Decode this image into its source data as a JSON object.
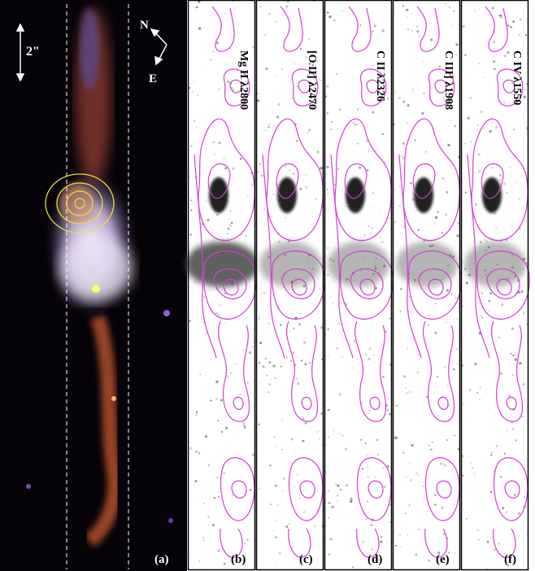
{
  "panel_a": {
    "scale_label": "2\"",
    "compass": {
      "north": "N",
      "east": "E"
    },
    "label": "(a)"
  },
  "panels": [
    {
      "label": "(b)",
      "line": "Mg II λ2800"
    },
    {
      "label": "(c)",
      "line": "[O II] λ2470"
    },
    {
      "label": "(d)",
      "line": "C II λ2326"
    },
    {
      "label": "(e)",
      "line": "C III] λ1908"
    },
    {
      "label": "(f)",
      "line": "C IV λ1550"
    }
  ]
}
